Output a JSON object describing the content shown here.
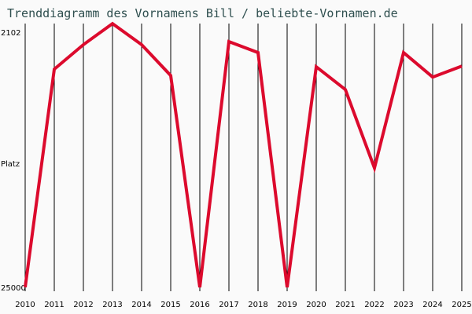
{
  "chart_data": {
    "type": "line",
    "title": "Trenddiagramm des Vornamens Bill / beliebte-Vornamen.de",
    "ylabel": "Platz",
    "y_tick_labels": [
      "2102",
      "25000"
    ],
    "yscale": "log",
    "y_inverted": true,
    "ylim": [
      25000,
      2102
    ],
    "grid": "vertical",
    "x": [
      2010,
      2011,
      2012,
      2013,
      2014,
      2015,
      2016,
      2017,
      2018,
      2019,
      2020,
      2021,
      2022,
      2023,
      2024,
      2025
    ],
    "series": [
      {
        "values": [
          25000,
          3030,
          2390,
          1950,
          2390,
          3220,
          25000,
          2320,
          2580,
          25000,
          2960,
          3690,
          7880,
          2580,
          3270,
          2940
        ],
        "color": "#dc0a2d"
      }
    ]
  }
}
